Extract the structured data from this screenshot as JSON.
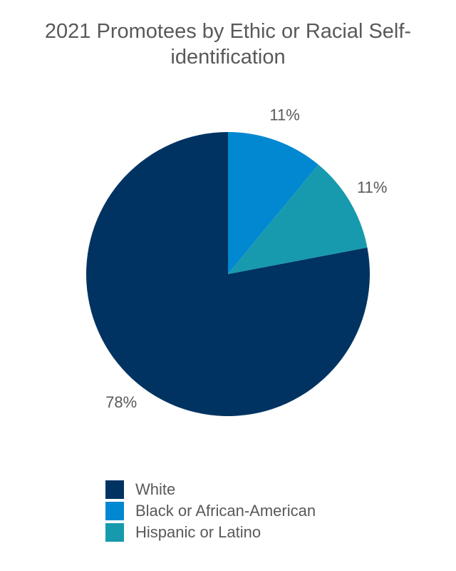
{
  "chart_data": {
    "type": "pie",
    "title": "2021 Promotees by Ethic or Racial Self-identification",
    "categories": [
      "White",
      "Black or African-American",
      "Hispanic or Latino"
    ],
    "values": [
      78,
      11,
      11
    ],
    "value_labels": [
      "78%",
      "11%",
      "11%"
    ],
    "colors": [
      "#003361",
      "#0288d1",
      "#179aad"
    ],
    "legend": "bottom"
  }
}
